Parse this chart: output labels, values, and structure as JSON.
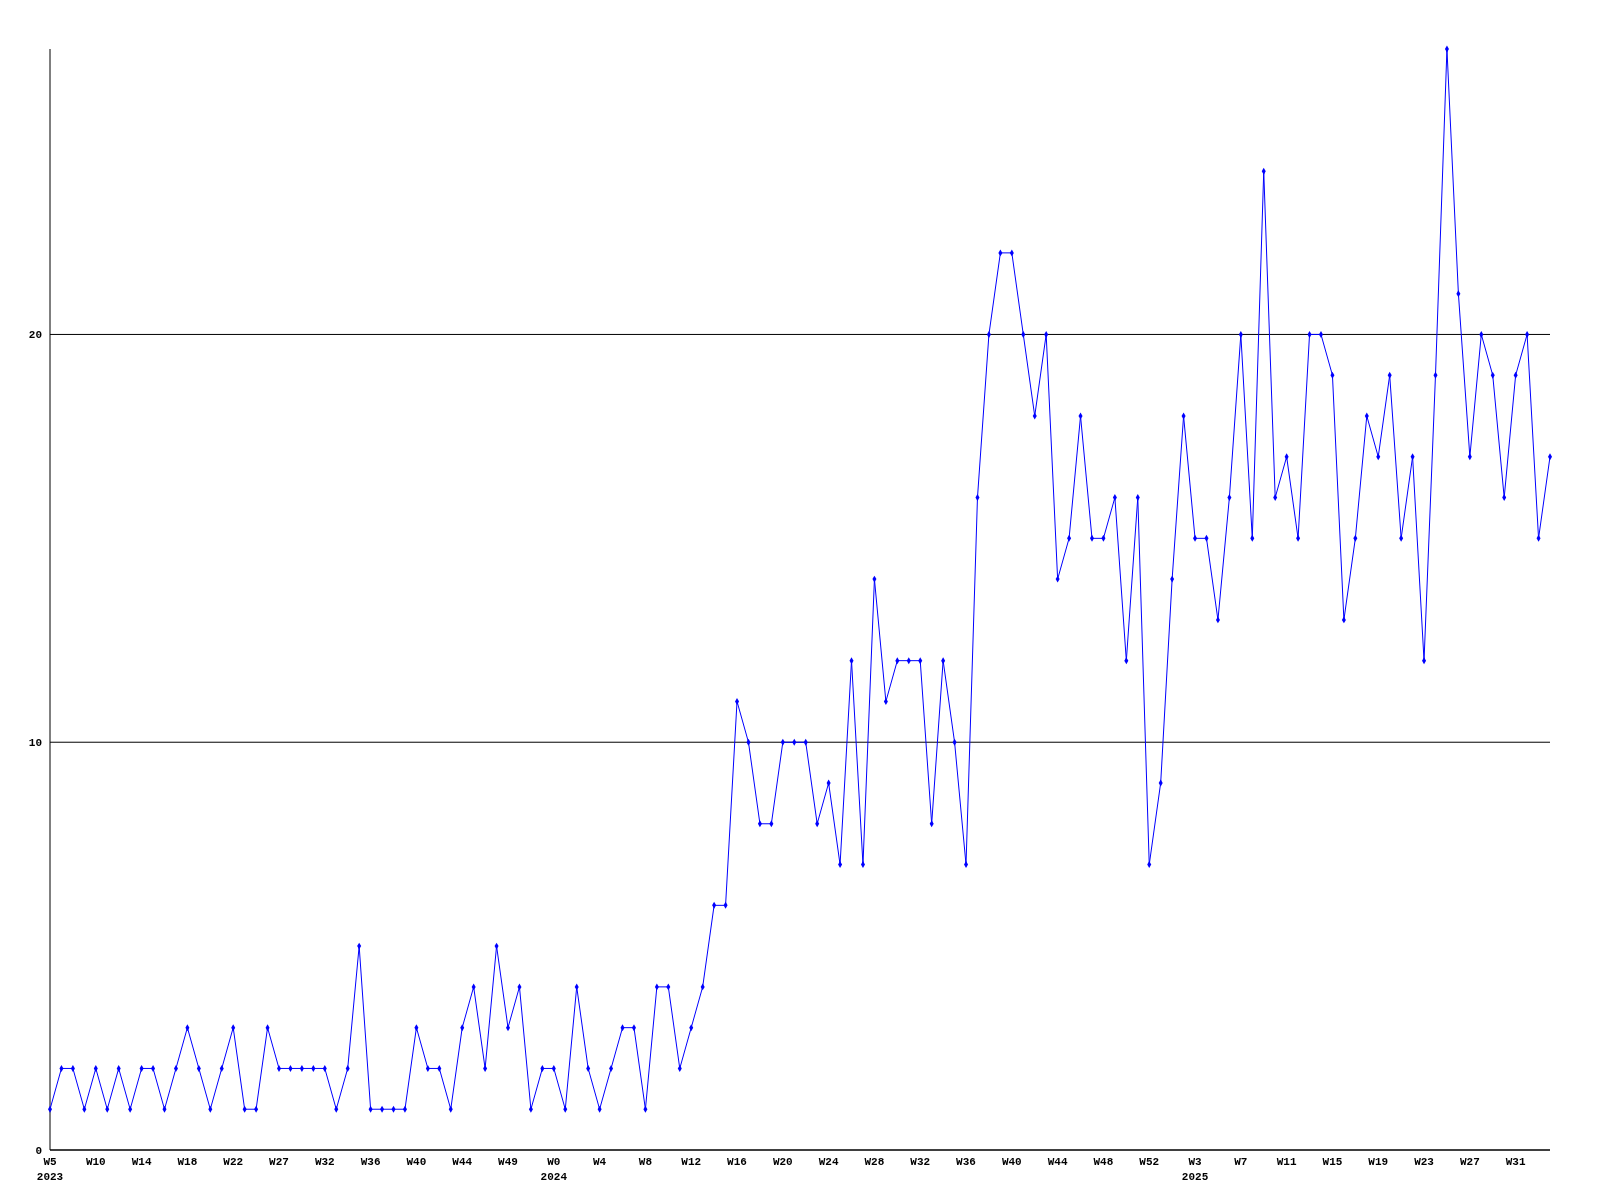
{
  "chart_data": {
    "type": "line",
    "categories": [
      "W5\n2023",
      null,
      null,
      null,
      "W10",
      null,
      null,
      null,
      "W14",
      null,
      null,
      null,
      "W18",
      null,
      null,
      null,
      "W22",
      null,
      null,
      null,
      "W27",
      null,
      null,
      null,
      "W32",
      null,
      null,
      null,
      "W36",
      null,
      null,
      null,
      "W40",
      null,
      null,
      null,
      "W44",
      null,
      null,
      null,
      "W49",
      null,
      null,
      null,
      "W0\n2024",
      null,
      null,
      null,
      "W4",
      null,
      null,
      null,
      "W8",
      null,
      null,
      null,
      "W12",
      null,
      null,
      null,
      "W16",
      null,
      null,
      null,
      "W20",
      null,
      null,
      null,
      "W24",
      null,
      null,
      null,
      "W28",
      null,
      null,
      null,
      "W32",
      null,
      null,
      null,
      "W36",
      null,
      null,
      null,
      "W40",
      null,
      null,
      null,
      "W44",
      null,
      null,
      null,
      "W48",
      null,
      null,
      null,
      "W52",
      null,
      null,
      null,
      "W3\n2025",
      null,
      null,
      null,
      "W7",
      null,
      null,
      null,
      "W11",
      null,
      null,
      null,
      "W15",
      null,
      null,
      null,
      "W19",
      null,
      null,
      null,
      "W23",
      null,
      null,
      null,
      "W27",
      null,
      null,
      null,
      "W31",
      null,
      null,
      null
    ],
    "series": [
      {
        "color": "#0000ff",
        "values": [
          1,
          2,
          2,
          1,
          2,
          1,
          2,
          1,
          2,
          2,
          1,
          2,
          3,
          2,
          1,
          2,
          3,
          1,
          1,
          3,
          2,
          2,
          2,
          2,
          2,
          1,
          2,
          5,
          1,
          1,
          1,
          1,
          3,
          2,
          2,
          1,
          3,
          4,
          2,
          5,
          3,
          4,
          1,
          2,
          2,
          1,
          4,
          2,
          1,
          2,
          3,
          3,
          1,
          4,
          4,
          2,
          3,
          4,
          6,
          6,
          11,
          10,
          8,
          8,
          10,
          10,
          10,
          8,
          9,
          7,
          12,
          7,
          14,
          11,
          12,
          12,
          12,
          8,
          12,
          10,
          7,
          16,
          20,
          22,
          22,
          20,
          18,
          20,
          14,
          15,
          18,
          15,
          15,
          16,
          12,
          16,
          7,
          9,
          14,
          18,
          15,
          15,
          13,
          16,
          20,
          15,
          24,
          16,
          17,
          15,
          20,
          20,
          19,
          13,
          15,
          18,
          17,
          19,
          15,
          17,
          12,
          19,
          27,
          21,
          17,
          20,
          19,
          16,
          19,
          20,
          15,
          17
        ]
      }
    ],
    "ylim": [
      0,
      27
    ],
    "yticks": [
      0,
      10,
      20
    ],
    "grid": "y",
    "marker": "diamond",
    "line_style": "solid"
  }
}
